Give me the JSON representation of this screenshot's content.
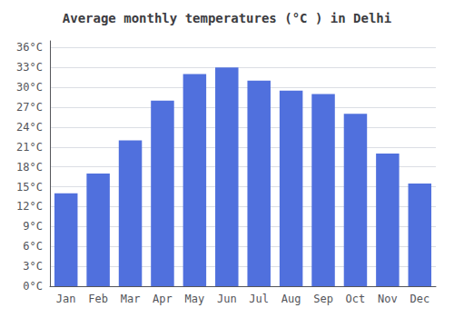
{
  "chart_data": {
    "type": "bar",
    "title": "Average monthly temperatures (°C ) in Delhi",
    "categories": [
      "Jan",
      "Feb",
      "Mar",
      "Apr",
      "May",
      "Jun",
      "Jul",
      "Aug",
      "Sep",
      "Oct",
      "Nov",
      "Dec"
    ],
    "values": [
      14,
      17,
      22,
      28,
      32,
      33,
      31,
      29.5,
      29,
      26,
      20,
      15.5
    ],
    "ylim": [
      0,
      37
    ],
    "yticks": [
      {
        "value": 0,
        "label": "0°C"
      },
      {
        "value": 3,
        "label": "3°C"
      },
      {
        "value": 6,
        "label": "6°C"
      },
      {
        "value": 9,
        "label": "9°C"
      },
      {
        "value": 12,
        "label": "12°C"
      },
      {
        "value": 15,
        "label": "15°C"
      },
      {
        "value": 18,
        "label": "18°C"
      },
      {
        "value": 21,
        "label": "21°C"
      },
      {
        "value": 24,
        "label": "24°C"
      },
      {
        "value": 27,
        "label": "27°C"
      },
      {
        "value": 30,
        "label": "30°C"
      },
      {
        "value": 33,
        "label": "33°C"
      },
      {
        "value": 36,
        "label": "36°C"
      }
    ],
    "grid": true
  }
}
